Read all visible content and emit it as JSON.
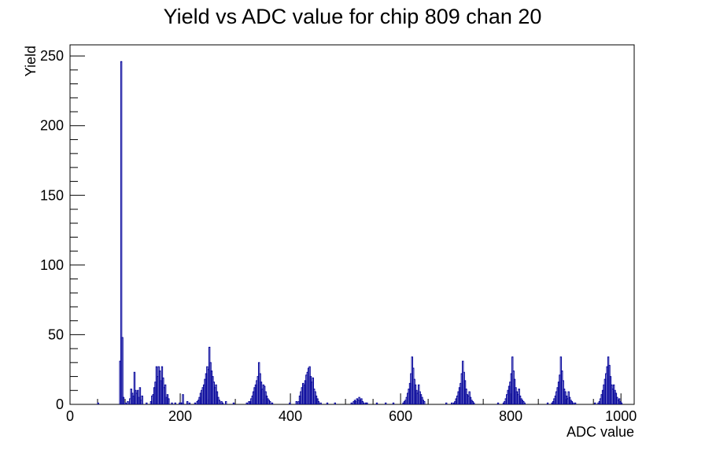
{
  "chart_data": {
    "type": "bar",
    "title": "Yield vs ADC value for chip 809 chan 20",
    "xlabel": "ADC value",
    "ylabel": "Yield",
    "xlim": [
      0,
      1024
    ],
    "ylim": [
      0,
      258
    ],
    "xticks": [
      0,
      200,
      400,
      600,
      800,
      1000
    ],
    "yticks": [
      0,
      50,
      100,
      150,
      200,
      250
    ],
    "grid": false,
    "legend": "none",
    "line_color": "#000099",
    "bin_width": 2,
    "bins": [
      [
        50,
        1
      ],
      [
        90,
        31
      ],
      [
        92,
        246
      ],
      [
        94,
        48
      ],
      [
        96,
        5
      ],
      [
        100,
        1
      ],
      [
        104,
        2
      ],
      [
        108,
        4
      ],
      [
        110,
        11
      ],
      [
        112,
        8
      ],
      [
        114,
        6
      ],
      [
        116,
        23
      ],
      [
        118,
        10
      ],
      [
        120,
        8
      ],
      [
        122,
        10
      ],
      [
        124,
        5
      ],
      [
        126,
        12
      ],
      [
        128,
        3
      ],
      [
        130,
        6
      ],
      [
        138,
        1
      ],
      [
        146,
        2
      ],
      [
        148,
        6
      ],
      [
        150,
        7
      ],
      [
        152,
        12
      ],
      [
        154,
        16
      ],
      [
        156,
        27
      ],
      [
        158,
        20
      ],
      [
        160,
        27
      ],
      [
        162,
        24
      ],
      [
        164,
        17
      ],
      [
        166,
        27
      ],
      [
        168,
        19
      ],
      [
        170,
        12
      ],
      [
        172,
        14
      ],
      [
        174,
        5
      ],
      [
        176,
        7
      ],
      [
        178,
        4
      ],
      [
        184,
        1
      ],
      [
        190,
        1
      ],
      [
        198,
        1
      ],
      [
        200,
        1
      ],
      [
        202,
        1
      ],
      [
        204,
        7
      ],
      [
        212,
        2
      ],
      [
        216,
        1
      ],
      [
        226,
        1
      ],
      [
        230,
        2
      ],
      [
        232,
        3
      ],
      [
        234,
        5
      ],
      [
        236,
        8
      ],
      [
        238,
        10
      ],
      [
        240,
        12
      ],
      [
        242,
        14
      ],
      [
        244,
        18
      ],
      [
        246,
        22
      ],
      [
        248,
        27
      ],
      [
        250,
        25
      ],
      [
        252,
        41
      ],
      [
        254,
        30
      ],
      [
        256,
        24
      ],
      [
        258,
        20
      ],
      [
        260,
        16
      ],
      [
        262,
        12
      ],
      [
        264,
        14
      ],
      [
        266,
        9
      ],
      [
        268,
        5
      ],
      [
        270,
        3
      ],
      [
        274,
        2
      ],
      [
        276,
        1
      ],
      [
        282,
        2
      ],
      [
        296,
        1
      ],
      [
        320,
        1
      ],
      [
        324,
        2
      ],
      [
        326,
        2
      ],
      [
        328,
        4
      ],
      [
        330,
        6
      ],
      [
        332,
        9
      ],
      [
        334,
        12
      ],
      [
        336,
        14
      ],
      [
        338,
        17
      ],
      [
        340,
        20
      ],
      [
        342,
        30
      ],
      [
        344,
        22
      ],
      [
        346,
        16
      ],
      [
        348,
        11
      ],
      [
        350,
        14
      ],
      [
        352,
        13
      ],
      [
        354,
        9
      ],
      [
        356,
        6
      ],
      [
        358,
        4
      ],
      [
        360,
        3
      ],
      [
        362,
        2
      ],
      [
        366,
        1
      ],
      [
        398,
        1
      ],
      [
        410,
        2
      ],
      [
        414,
        2
      ],
      [
        416,
        6
      ],
      [
        418,
        9
      ],
      [
        420,
        12
      ],
      [
        422,
        15
      ],
      [
        424,
        14
      ],
      [
        426,
        17
      ],
      [
        428,
        21
      ],
      [
        430,
        23
      ],
      [
        432,
        26
      ],
      [
        434,
        27
      ],
      [
        436,
        20
      ],
      [
        438,
        16
      ],
      [
        440,
        19
      ],
      [
        442,
        11
      ],
      [
        444,
        9
      ],
      [
        446,
        6
      ],
      [
        448,
        4
      ],
      [
        450,
        2
      ],
      [
        454,
        1
      ],
      [
        466,
        1
      ],
      [
        480,
        1
      ],
      [
        510,
        1
      ],
      [
        514,
        2
      ],
      [
        516,
        3
      ],
      [
        518,
        2
      ],
      [
        520,
        4
      ],
      [
        522,
        3
      ],
      [
        524,
        5
      ],
      [
        526,
        3
      ],
      [
        528,
        4
      ],
      [
        530,
        2
      ],
      [
        532,
        1
      ],
      [
        536,
        1
      ],
      [
        538,
        1
      ],
      [
        556,
        1
      ],
      [
        572,
        1
      ],
      [
        586,
        1
      ],
      [
        604,
        1
      ],
      [
        606,
        2
      ],
      [
        608,
        3
      ],
      [
        610,
        5
      ],
      [
        612,
        8
      ],
      [
        614,
        11
      ],
      [
        616,
        15
      ],
      [
        618,
        22
      ],
      [
        620,
        34
      ],
      [
        622,
        26
      ],
      [
        624,
        18
      ],
      [
        626,
        14
      ],
      [
        628,
        10
      ],
      [
        630,
        8
      ],
      [
        632,
        14
      ],
      [
        634,
        9
      ],
      [
        636,
        7
      ],
      [
        638,
        5
      ],
      [
        640,
        3
      ],
      [
        642,
        2
      ],
      [
        682,
        1
      ],
      [
        692,
        1
      ],
      [
        696,
        1
      ],
      [
        698,
        2
      ],
      [
        700,
        4
      ],
      [
        702,
        6
      ],
      [
        704,
        9
      ],
      [
        706,
        12
      ],
      [
        708,
        15
      ],
      [
        710,
        22
      ],
      [
        712,
        31
      ],
      [
        714,
        23
      ],
      [
        716,
        17
      ],
      [
        718,
        11
      ],
      [
        720,
        7
      ],
      [
        722,
        6
      ],
      [
        724,
        9
      ],
      [
        726,
        5
      ],
      [
        728,
        3
      ],
      [
        730,
        2
      ],
      [
        732,
        1
      ],
      [
        776,
        1
      ],
      [
        786,
        1
      ],
      [
        788,
        2
      ],
      [
        790,
        4
      ],
      [
        792,
        7
      ],
      [
        794,
        10
      ],
      [
        796,
        13
      ],
      [
        798,
        16
      ],
      [
        800,
        22
      ],
      [
        802,
        34
      ],
      [
        804,
        24
      ],
      [
        806,
        18
      ],
      [
        808,
        12
      ],
      [
        810,
        9
      ],
      [
        812,
        7
      ],
      [
        814,
        11
      ],
      [
        816,
        6
      ],
      [
        818,
        4
      ],
      [
        820,
        3
      ],
      [
        822,
        2
      ],
      [
        824,
        1
      ],
      [
        866,
        1
      ],
      [
        874,
        1
      ],
      [
        876,
        2
      ],
      [
        878,
        4
      ],
      [
        880,
        6
      ],
      [
        882,
        9
      ],
      [
        884,
        12
      ],
      [
        886,
        16
      ],
      [
        888,
        21
      ],
      [
        890,
        34
      ],
      [
        892,
        24
      ],
      [
        894,
        17
      ],
      [
        896,
        11
      ],
      [
        898,
        9
      ],
      [
        900,
        6
      ],
      [
        902,
        4
      ],
      [
        904,
        9
      ],
      [
        906,
        5
      ],
      [
        908,
        3
      ],
      [
        910,
        2
      ],
      [
        912,
        1
      ],
      [
        916,
        1
      ],
      [
        952,
        1
      ],
      [
        958,
        1
      ],
      [
        960,
        2
      ],
      [
        962,
        4
      ],
      [
        964,
        7
      ],
      [
        966,
        10
      ],
      [
        968,
        14
      ],
      [
        970,
        18
      ],
      [
        972,
        22
      ],
      [
        974,
        27
      ],
      [
        976,
        34
      ],
      [
        978,
        28
      ],
      [
        980,
        20
      ],
      [
        982,
        14
      ],
      [
        984,
        11
      ],
      [
        986,
        14
      ],
      [
        988,
        10
      ],
      [
        990,
        8
      ],
      [
        992,
        5
      ],
      [
        994,
        3
      ],
      [
        996,
        4
      ],
      [
        998,
        2
      ],
      [
        1000,
        1
      ]
    ]
  }
}
